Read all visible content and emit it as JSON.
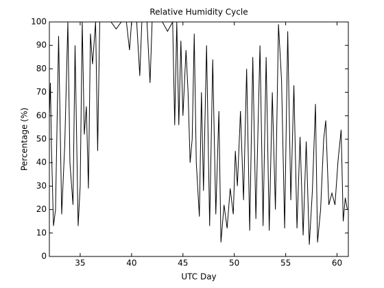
{
  "chart_data": {
    "type": "line",
    "title": "Relative Humidity Cycle",
    "x_label": "UTC Day",
    "y_label": "Percentage (%)",
    "xlim": [
      32,
      61.1
    ],
    "ylim": [
      0,
      100
    ],
    "xticks": [
      35,
      40,
      45,
      50,
      55,
      60
    ],
    "yticks": [
      0,
      10,
      20,
      30,
      40,
      50,
      60,
      70,
      80,
      90,
      100
    ],
    "x": [
      32.0,
      32.1,
      32.2,
      32.4,
      32.6,
      32.9,
      33.2,
      33.5,
      33.8,
      34.0,
      34.3,
      34.5,
      34.8,
      35.0,
      35.2,
      35.4,
      35.6,
      35.8,
      36.0,
      36.2,
      36.5,
      36.7,
      36.9,
      37.2,
      37.5,
      38.0,
      38.5,
      39.0,
      39.5,
      39.8,
      40.0,
      40.5,
      40.8,
      41.0,
      41.5,
      41.8,
      42.0,
      42.5,
      43.0,
      43.5,
      44.0,
      44.2,
      44.4,
      44.6,
      44.8,
      45.0,
      45.3,
      45.5,
      45.7,
      45.9,
      46.1,
      46.3,
      46.6,
      46.8,
      47.0,
      47.3,
      47.6,
      47.9,
      48.2,
      48.5,
      48.7,
      49.0,
      49.3,
      49.6,
      49.9,
      50.1,
      50.3,
      50.6,
      50.9,
      51.2,
      51.5,
      51.8,
      52.1,
      52.5,
      52.8,
      53.1,
      53.4,
      53.7,
      54.0,
      54.3,
      54.6,
      54.9,
      55.2,
      55.5,
      55.8,
      56.1,
      56.4,
      56.7,
      57.0,
      57.3,
      57.6,
      57.9,
      58.1,
      58.4,
      58.7,
      58.9,
      59.2,
      59.5,
      59.8,
      60.1,
      60.4,
      60.6,
      60.8,
      61.0
    ],
    "series": [
      {
        "color": "#000000",
        "values": [
          60,
          74,
          47,
          13,
          20,
          94,
          18,
          48,
          100,
          40,
          22,
          90,
          13,
          30,
          100,
          52,
          64,
          29,
          95,
          82,
          100,
          45,
          100,
          100,
          100,
          100,
          97,
          100,
          100,
          88,
          100,
          100,
          77,
          100,
          100,
          74,
          100,
          100,
          100,
          96,
          100,
          56,
          100,
          56,
          92,
          60,
          88,
          70,
          40,
          50,
          95,
          40,
          17,
          70,
          28,
          90,
          13,
          84,
          18,
          62,
          6,
          22,
          12,
          29,
          18,
          45,
          30,
          62,
          24,
          80,
          11,
          85,
          16,
          90,
          13,
          85,
          11,
          70,
          20,
          99,
          75,
          12,
          96,
          24,
          73,
          12,
          51,
          9,
          49,
          5,
          28,
          65,
          6,
          20,
          50,
          58,
          22,
          27,
          22,
          41,
          54,
          15,
          25,
          20
        ]
      }
    ],
    "grid": false
  }
}
